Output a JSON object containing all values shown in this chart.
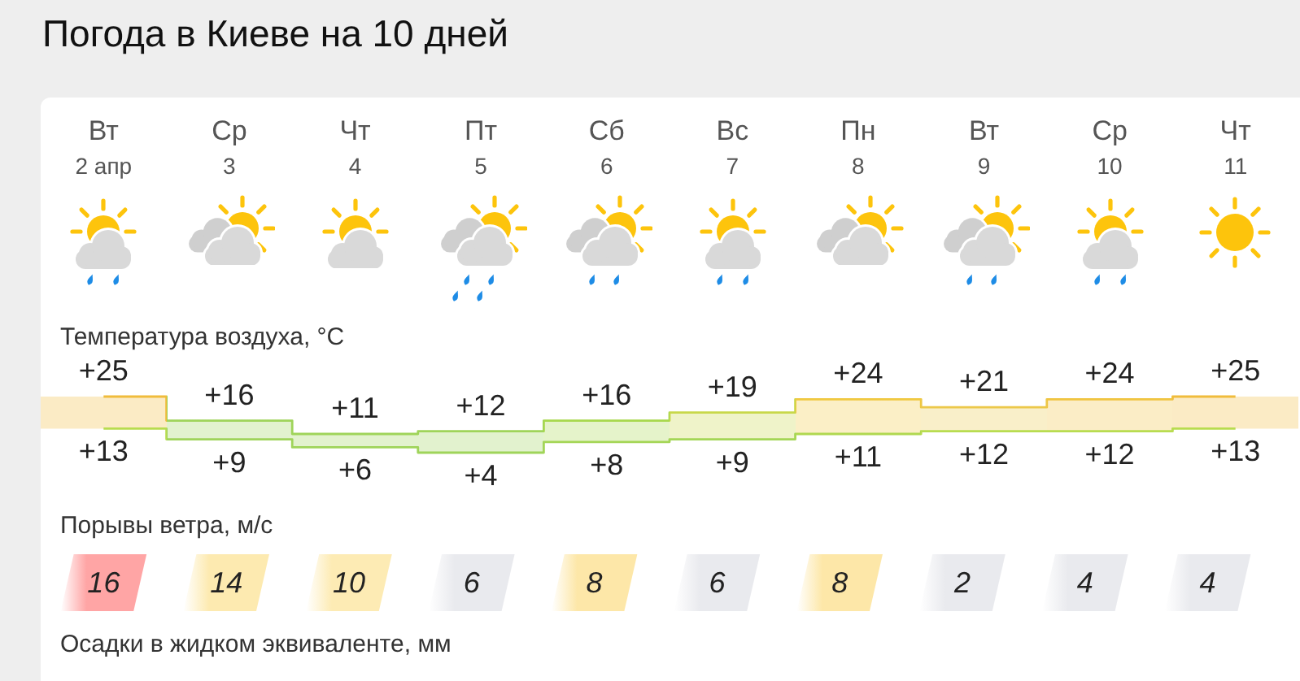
{
  "chart_data": [
    {
      "type": "step",
      "title": "Погода в Киеве на 10 дней",
      "subtitle": "Температура воздуха, °C",
      "categories": [
        "Вт\n2 апр",
        "Ср\n3",
        "Чт\n4",
        "Пт\n5",
        "Сб\n6",
        "Вс\n7",
        "Пн\n8",
        "Вт\n9",
        "Ср\n10",
        "Чт\n11"
      ],
      "series": [
        {
          "values": [
            25,
            16,
            11,
            12,
            16,
            19,
            24,
            21,
            24,
            25
          ],
          "colors": [
            "#f0bc3c",
            "#9fd45a",
            "#9fd45a",
            "#9fd45a",
            "#a8d84e",
            "#c8d84a",
            "#f0c840",
            "#ecc84a",
            "#f0c440",
            "#f0bc3c"
          ],
          "value_labels": [
            "+25",
            "+16",
            "+11",
            "+12",
            "+16",
            "+19",
            "+24",
            "+21",
            "+24",
            "+25"
          ]
        },
        {
          "values": [
            13,
            9,
            6,
            4,
            8,
            9,
            11,
            12,
            12,
            13
          ],
          "colors": [
            "#b8dc50",
            "#9fd45a",
            "#9fd45a",
            "#9fd45a",
            "#a4d656",
            "#a4d656",
            "#b0d850",
            "#b8dc50",
            "#b8dc50",
            "#b8dc50"
          ],
          "value_labels": [
            "+13",
            "+9",
            "+6",
            "+4",
            "+8",
            "+9",
            "+11",
            "+12",
            "+12",
            "+13"
          ]
        }
      ],
      "tick_labels": "x"
    },
    {
      "type": "other",
      "title": "Порывы ветра, м/с",
      "values": [
        16,
        14,
        10,
        6,
        8,
        6,
        8,
        2,
        4,
        4
      ],
      "colors": [
        "#ffa5a5",
        "#fdeab0",
        "#fdebb4",
        "#e9eaee",
        "#fde7a8",
        "#e9eaee",
        "#fde7a8",
        "#e9eaee",
        "#e9eaee",
        "#e9eaee"
      ],
      "data_labels": true
    },
    {
      "type": "other",
      "title": "Осадки в жидком эквиваленте, мм"
    }
  ]
}
